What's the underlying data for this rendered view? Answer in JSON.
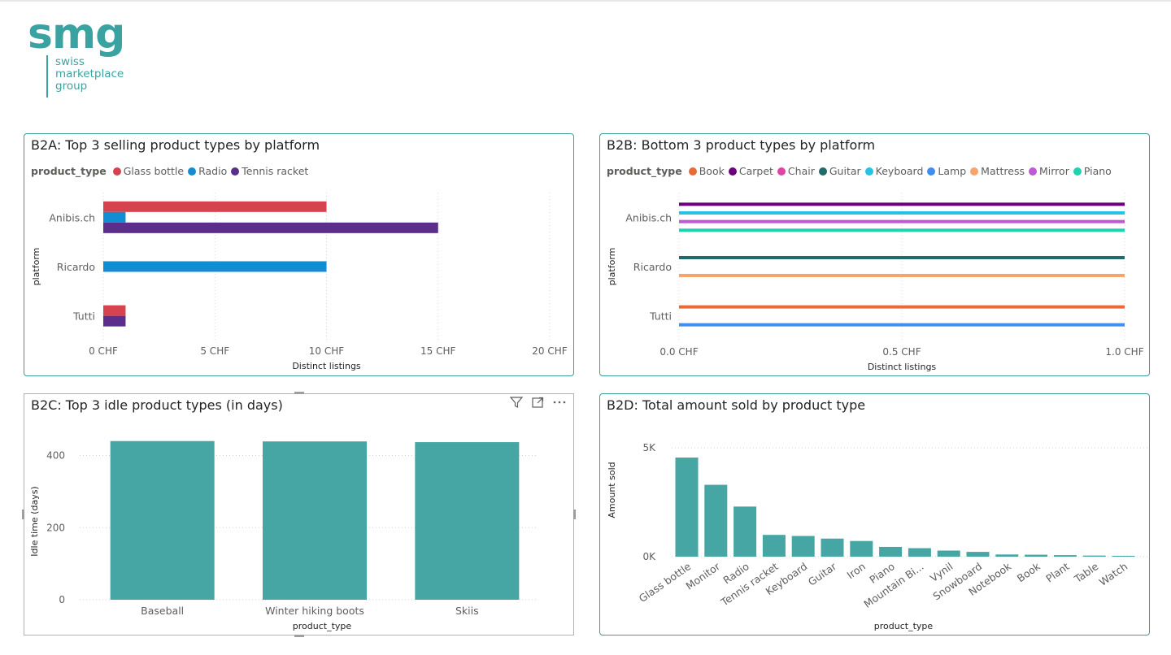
{
  "logo": {
    "mark": "smg",
    "lines": [
      "swiss",
      "marketplace",
      "group"
    ]
  },
  "b2a": {
    "title": "B2A: Top 3 selling product types by platform",
    "legend_title": "product_type",
    "chart_data": {
      "type": "bar",
      "orientation": "horizontal",
      "categories": [
        "Anibis.ch",
        "Ricardo",
        "Tutti"
      ],
      "series": [
        {
          "name": "Glass bottle",
          "color": "#d6434f",
          "values": [
            10,
            null,
            1
          ]
        },
        {
          "name": "Radio",
          "color": "#118dd3",
          "values": [
            1,
            10,
            null
          ]
        },
        {
          "name": "Tennis racket",
          "color": "#5a2e8a",
          "values": [
            15,
            null,
            1
          ]
        }
      ],
      "xlim": [
        0,
        20
      ],
      "x_ticks": [
        "0 CHF",
        "5 CHF",
        "10 CHF",
        "15 CHF",
        "20 CHF"
      ],
      "xlabel": "Distinct listings",
      "ylabel": "platform"
    }
  },
  "b2b": {
    "title": "B2B: Bottom 3 product types by platform",
    "legend_title": "product_type",
    "chart_data": {
      "type": "bar",
      "orientation": "horizontal",
      "categories": [
        "Anibis.ch",
        "Ricardo",
        "Tutti"
      ],
      "series": [
        {
          "name": "Book",
          "color": "#e66c37",
          "values": [
            null,
            null,
            1
          ]
        },
        {
          "name": "Carpet",
          "color": "#6b007b",
          "values": [
            1,
            null,
            null
          ]
        },
        {
          "name": "Chair",
          "color": "#e044a7",
          "values": [
            null,
            null,
            null
          ]
        },
        {
          "name": "Guitar",
          "color": "#1f6b6b",
          "values": [
            null,
            1,
            null
          ]
        },
        {
          "name": "Keyboard",
          "color": "#25c2e6",
          "values": [
            1,
            null,
            null
          ]
        },
        {
          "name": "Lamp",
          "color": "#3f8ef0",
          "values": [
            null,
            null,
            1
          ]
        },
        {
          "name": "Mattress",
          "color": "#f6a46a",
          "values": [
            null,
            1,
            null
          ]
        },
        {
          "name": "Mirror",
          "color": "#c058d6",
          "values": [
            1,
            null,
            null
          ]
        },
        {
          "name": "Piano",
          "color": "#1fd3b0",
          "values": [
            1,
            null,
            null
          ]
        }
      ],
      "xlim": [
        0,
        1
      ],
      "x_ticks": [
        "0.0 CHF",
        "0.5 CHF",
        "1.0 CHF"
      ],
      "xlabel": "Distinct listings",
      "ylabel": "platform"
    }
  },
  "b2c": {
    "title": "B2C: Top 3 idle product types (in days)",
    "chart_data": {
      "type": "bar",
      "categories": [
        "Baseball",
        "Winter hiking boots",
        "Skiis"
      ],
      "values": [
        440,
        439,
        437
      ],
      "color": "#46a6a4",
      "ylim": [
        0,
        480
      ],
      "y_ticks": [
        "0",
        "200",
        "400"
      ],
      "xlabel": "product_type",
      "ylabel": "Idle time (days)"
    }
  },
  "b2d": {
    "title": "B2D: Total amount sold by product type",
    "chart_data": {
      "type": "bar",
      "categories": [
        "Glass bottle",
        "Monitor",
        "Radio",
        "Tennis racket",
        "Keyboard",
        "Guitar",
        "Iron",
        "Piano",
        "Mountain Bi...",
        "Vynil",
        "Snowboard",
        "Notebook",
        "Book",
        "Plant",
        "Table",
        "Watch"
      ],
      "values": [
        4550,
        3300,
        2300,
        1000,
        950,
        830,
        720,
        450,
        390,
        280,
        220,
        100,
        90,
        70,
        50,
        40
      ],
      "color": "#46a6a4",
      "ylim": [
        0,
        5000
      ],
      "y_ticks": [
        "0K",
        "5K"
      ],
      "xlabel": "product_type",
      "ylabel": "Amount sold"
    }
  }
}
